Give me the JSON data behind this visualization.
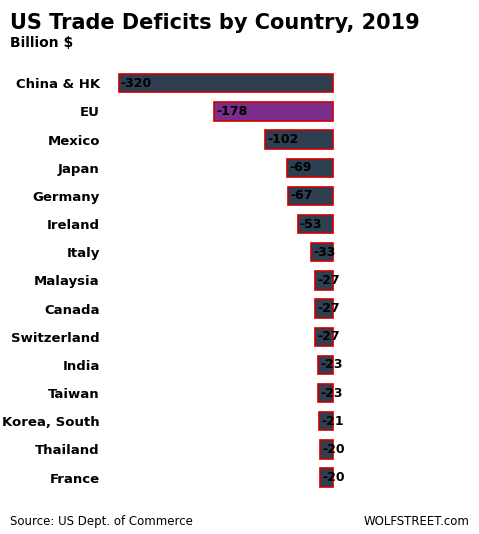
{
  "title": "US Trade Deficits by Country, 2019",
  "subtitle": "Billion $",
  "categories": [
    "China & HK",
    "EU",
    "Mexico",
    "Japan",
    "Germany",
    "Ireland",
    "Italy",
    "Malaysia",
    "Canada",
    "Switzerland",
    "India",
    "Taiwan",
    "Korea, South",
    "Thailand",
    "France"
  ],
  "values": [
    -320,
    -178,
    -102,
    -69,
    -67,
    -53,
    -33,
    -27,
    -27,
    -27,
    -23,
    -23,
    -21,
    -20,
    -20
  ],
  "bar_colors": [
    "#2e3f52",
    "#7b2d8b",
    "#2e3f52",
    "#2e3f52",
    "#2e3f52",
    "#2e3f52",
    "#2e3f52",
    "#2e3f52",
    "#2e3f52",
    "#2e3f52",
    "#2e3f52",
    "#2e3f52",
    "#2e3f52",
    "#2e3f52",
    "#2e3f52"
  ],
  "bar_edge_color": "#cc0000",
  "bar_edge_width": 1.2,
  "xlim": [
    -340,
    60
  ],
  "source_text": "Source: US Dept. of Commerce",
  "watermark": "WOLFSTREET.com",
  "background_color": "#ffffff",
  "title_fontsize": 15,
  "subtitle_fontsize": 10,
  "label_fontsize": 9,
  "tick_fontsize": 9.5,
  "source_fontsize": 8.5
}
